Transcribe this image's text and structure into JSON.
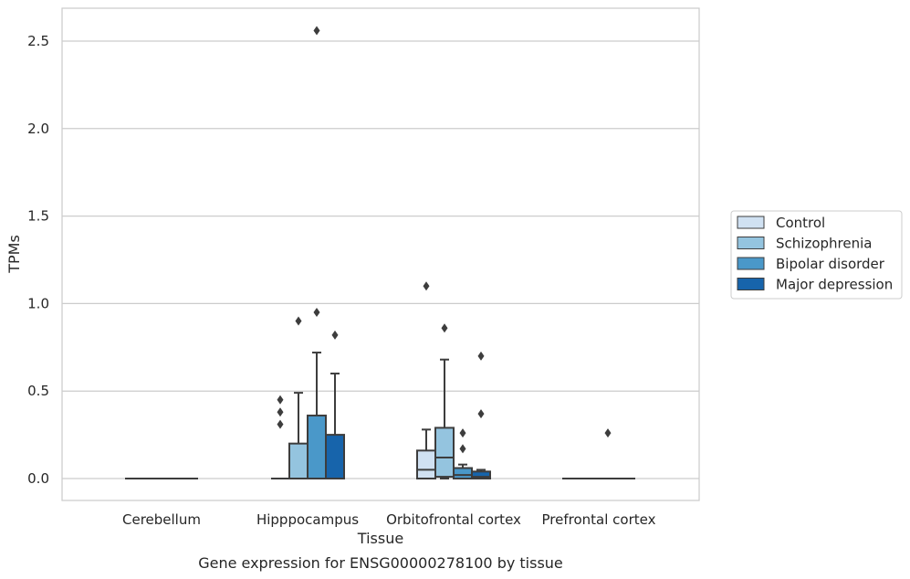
{
  "chart_data": {
    "type": "box",
    "title": "",
    "caption": "Gene expression for ENSG00000278100 by tissue",
    "xlabel": "Tissue",
    "ylabel": "TPMs",
    "ylim": [
      -0.125,
      2.69
    ],
    "yticks": [
      0.0,
      0.5,
      1.0,
      1.5,
      2.0,
      2.5
    ],
    "ytick_labels": [
      "0.0",
      "0.5",
      "1.0",
      "1.5",
      "2.0",
      "2.5"
    ],
    "grid": "horizontal",
    "legend_position": "right",
    "categories": [
      "Cerebellum",
      "Hipppocampus",
      "Orbitofrontal cortex",
      "Prefrontal cortex"
    ],
    "series": [
      {
        "name": "Control",
        "color": "#d0e1f2",
        "boxes": [
          {
            "category": "Cerebellum",
            "whislo": 0,
            "q1": 0,
            "med": 0,
            "q3": 0,
            "whishi": 0,
            "fliers": []
          },
          {
            "category": "Hipppocampus",
            "whislo": 0,
            "q1": 0,
            "med": 0,
            "q3": 0,
            "whishi": 0,
            "fliers": []
          },
          {
            "category": "Orbitofrontal cortex",
            "whislo": 0,
            "q1": 0,
            "med": 0.05,
            "q3": 0.16,
            "whishi": 0.28,
            "fliers": [
              1.1
            ]
          },
          {
            "category": "Prefrontal cortex",
            "whislo": 0,
            "q1": 0,
            "med": 0,
            "q3": 0,
            "whishi": 0,
            "fliers": []
          }
        ]
      },
      {
        "name": "Schizophrenia",
        "color": "#94c4df",
        "boxes": [
          {
            "category": "Cerebellum",
            "whislo": 0,
            "q1": 0,
            "med": 0,
            "q3": 0,
            "whishi": 0,
            "fliers": []
          },
          {
            "category": "Hipppocampus",
            "whislo": 0,
            "q1": 0,
            "med": 0,
            "q3": 0.2,
            "whishi": 0.49,
            "fliers": [
              0.9
            ]
          },
          {
            "category": "Orbitofrontal cortex",
            "whislo": 0,
            "q1": 0.01,
            "med": 0.12,
            "q3": 0.29,
            "whishi": 0.68,
            "fliers": [
              0.86
            ]
          },
          {
            "category": "Prefrontal cortex",
            "whislo": 0,
            "q1": 0,
            "med": 0,
            "q3": 0,
            "whishi": 0,
            "fliers": []
          }
        ]
      },
      {
        "name": "Bipolar disorder",
        "color": "#4a98c9",
        "boxes": [
          {
            "category": "Cerebellum",
            "whislo": 0,
            "q1": 0,
            "med": 0,
            "q3": 0,
            "whishi": 0,
            "fliers": []
          },
          {
            "category": "Hipppocampus",
            "whislo": 0,
            "q1": 0,
            "med": 0,
            "q3": 0.36,
            "whishi": 0.72,
            "fliers": [
              0.95,
              2.56
            ]
          },
          {
            "category": "Orbitofrontal cortex",
            "whislo": 0,
            "q1": 0,
            "med": 0.02,
            "q3": 0.06,
            "whishi": 0.08,
            "fliers": [
              0.26,
              0.17
            ]
          },
          {
            "category": "Prefrontal cortex",
            "whislo": 0,
            "q1": 0,
            "med": 0,
            "q3": 0,
            "whishi": 0,
            "fliers": [
              0.26
            ]
          }
        ]
      },
      {
        "name": "Major depression",
        "color": "#1764ab",
        "boxes": [
          {
            "category": "Cerebellum",
            "whislo": 0,
            "q1": 0,
            "med": 0,
            "q3": 0,
            "whishi": 0,
            "fliers": []
          },
          {
            "category": "Hipppocampus",
            "whislo": 0,
            "q1": 0,
            "med": 0,
            "q3": 0.25,
            "whishi": 0.6,
            "fliers": [
              0.82
            ]
          },
          {
            "category": "Orbitofrontal cortex",
            "whislo": 0,
            "q1": 0,
            "med": 0.01,
            "q3": 0.04,
            "whishi": 0.05,
            "fliers": [
              0.7,
              0.37
            ]
          },
          {
            "category": "Prefrontal cortex",
            "whislo": 0,
            "q1": 0,
            "med": 0,
            "q3": 0,
            "whishi": 0,
            "fliers": []
          }
        ]
      }
    ],
    "extra_fliers": [
      {
        "category": "Hipppocampus",
        "series": "Control",
        "values": [
          0.45,
          0.38,
          0.31
        ]
      }
    ]
  }
}
